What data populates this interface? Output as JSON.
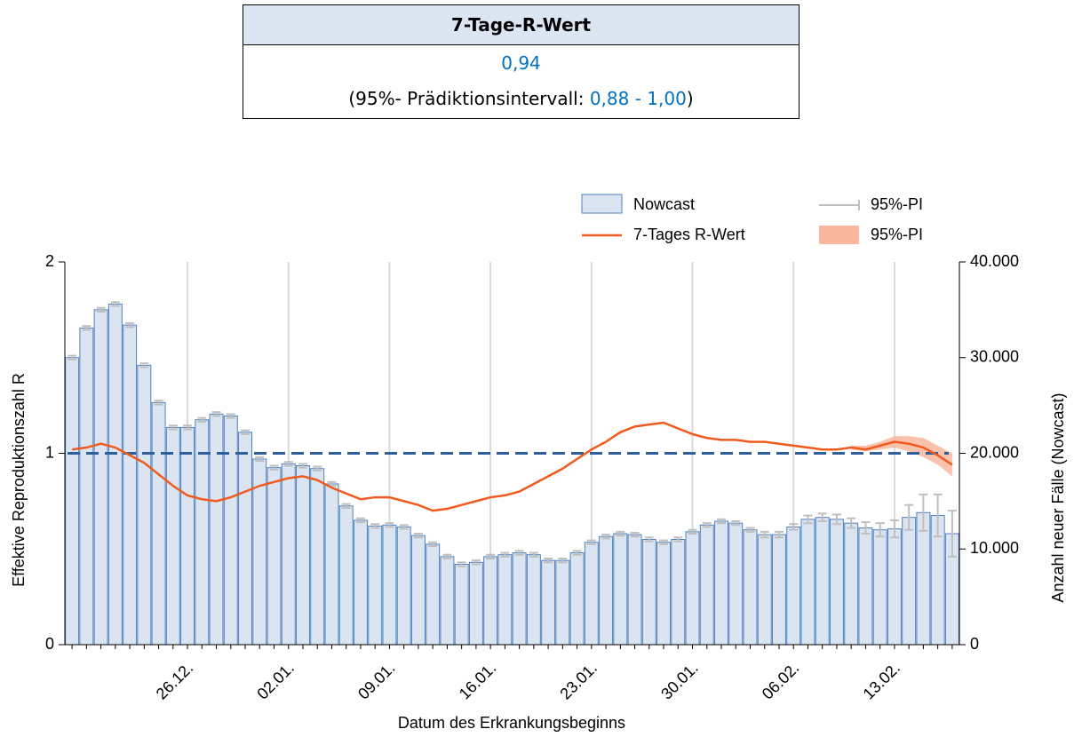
{
  "header": {
    "title": "7-Tage-R-Wert",
    "value": "0,94",
    "interval_prefix": "(95%- Prädiktionsintervall: ",
    "interval": "0,88 - 1,00",
    "interval_suffix": ")"
  },
  "chart_data": {
    "type": "combo",
    "categories": [
      null,
      null,
      null,
      null,
      null,
      null,
      null,
      null,
      "26.12.",
      null,
      null,
      null,
      null,
      null,
      null,
      "02.01.",
      null,
      null,
      null,
      null,
      null,
      null,
      "09.01.",
      null,
      null,
      null,
      null,
      null,
      null,
      "16.01.",
      null,
      null,
      null,
      null,
      null,
      null,
      "23.01.",
      null,
      null,
      null,
      null,
      null,
      null,
      "30.01.",
      null,
      null,
      null,
      null,
      null,
      null,
      "06.02.",
      null,
      null,
      null,
      null,
      null,
      null,
      "13.02.",
      null,
      null,
      null,
      null
    ],
    "series": [
      {
        "name": "Nowcast",
        "type": "bar",
        "axis": "y2",
        "color": "#dbe5f1",
        "edge": "#4f81bd",
        "error_name": "95%-PI",
        "error_color": "#bfbfbf",
        "values": [
          30000,
          33100,
          35000,
          35600,
          33400,
          29200,
          25300,
          22700,
          22700,
          23500,
          24100,
          23900,
          22200,
          19400,
          18500,
          18900,
          18700,
          18400,
          16800,
          14500,
          13000,
          12400,
          12500,
          12300,
          11400,
          10500,
          9200,
          8400,
          8600,
          9200,
          9400,
          9600,
          9400,
          8800,
          8800,
          9600,
          10700,
          11300,
          11600,
          11500,
          11000,
          10700,
          11000,
          11800,
          12500,
          12900,
          12700,
          12000,
          11500,
          11500,
          12300,
          13100,
          13300,
          13100,
          12700,
          12200,
          12000,
          12100,
          13300,
          13800,
          13500,
          11600
        ],
        "errors": [
          200,
          200,
          200,
          200,
          200,
          200,
          200,
          200,
          200,
          200,
          200,
          200,
          200,
          200,
          200,
          200,
          200,
          200,
          200,
          200,
          200,
          200,
          200,
          200,
          200,
          200,
          200,
          200,
          200,
          200,
          200,
          200,
          200,
          200,
          200,
          200,
          200,
          200,
          200,
          200,
          200,
          200,
          200,
          200,
          200,
          200,
          200,
          200,
          300,
          300,
          300,
          400,
          400,
          500,
          500,
          600,
          700,
          900,
          1300,
          1900,
          2200,
          2400
        ]
      },
      {
        "name": "7-Tages R-Wert",
        "type": "line",
        "axis": "y",
        "color": "#f05a1e",
        "band_name": "95%-PI",
        "band_color": "#f8b79e",
        "values": [
          1.02,
          1.03,
          1.05,
          1.03,
          0.99,
          0.95,
          0.89,
          0.83,
          0.78,
          0.76,
          0.75,
          0.77,
          0.8,
          0.83,
          0.85,
          0.87,
          0.88,
          0.86,
          0.82,
          0.79,
          0.76,
          0.77,
          0.77,
          0.75,
          0.73,
          0.7,
          0.71,
          0.73,
          0.75,
          0.77,
          0.78,
          0.8,
          0.84,
          0.88,
          0.92,
          0.97,
          1.02,
          1.06,
          1.11,
          1.14,
          1.15,
          1.16,
          1.13,
          1.1,
          1.08,
          1.07,
          1.07,
          1.06,
          1.06,
          1.05,
          1.04,
          1.03,
          1.02,
          1.02,
          1.03,
          1.02,
          1.04,
          1.06,
          1.05,
          1.03,
          0.99,
          0.94
        ],
        "lower": [
          null,
          null,
          null,
          null,
          null,
          null,
          null,
          null,
          null,
          null,
          null,
          null,
          null,
          null,
          null,
          null,
          null,
          null,
          null,
          null,
          null,
          null,
          null,
          null,
          null,
          null,
          null,
          null,
          null,
          null,
          null,
          null,
          null,
          null,
          null,
          null,
          null,
          null,
          null,
          null,
          null,
          null,
          null,
          null,
          null,
          null,
          null,
          null,
          null,
          null,
          null,
          null,
          null,
          null,
          1.02,
          1.01,
          1.02,
          1.03,
          1.01,
          0.98,
          0.94,
          0.88
        ],
        "upper": [
          null,
          null,
          null,
          null,
          null,
          null,
          null,
          null,
          null,
          null,
          null,
          null,
          null,
          null,
          null,
          null,
          null,
          null,
          null,
          null,
          null,
          null,
          null,
          null,
          null,
          null,
          null,
          null,
          null,
          null,
          null,
          null,
          null,
          null,
          null,
          null,
          null,
          null,
          null,
          null,
          null,
          null,
          null,
          null,
          null,
          null,
          null,
          null,
          null,
          null,
          null,
          null,
          null,
          null,
          1.04,
          1.04,
          1.06,
          1.09,
          1.09,
          1.08,
          1.04,
          1.0
        ]
      }
    ],
    "reference_line": 1,
    "reference_color": "#2e5f99",
    "ylim": [
      0,
      2
    ],
    "yticks": [
      0,
      1,
      2
    ],
    "y2lim": [
      0,
      40000
    ],
    "y2ticks": [
      0,
      {
        "value": 10000,
        "label": "10.000"
      },
      {
        "value": 20000,
        "label": "20.000"
      },
      {
        "value": 30000,
        "label": "30.000"
      },
      {
        "value": 40000,
        "label": "40.000"
      }
    ],
    "y_label": "Effektive Reproduktionszahl R",
    "y2_label": "Anzahl neuer Fälle (Nowcast)",
    "x_label": "Datum des Erkrankungsbeginns",
    "grid": "x"
  }
}
